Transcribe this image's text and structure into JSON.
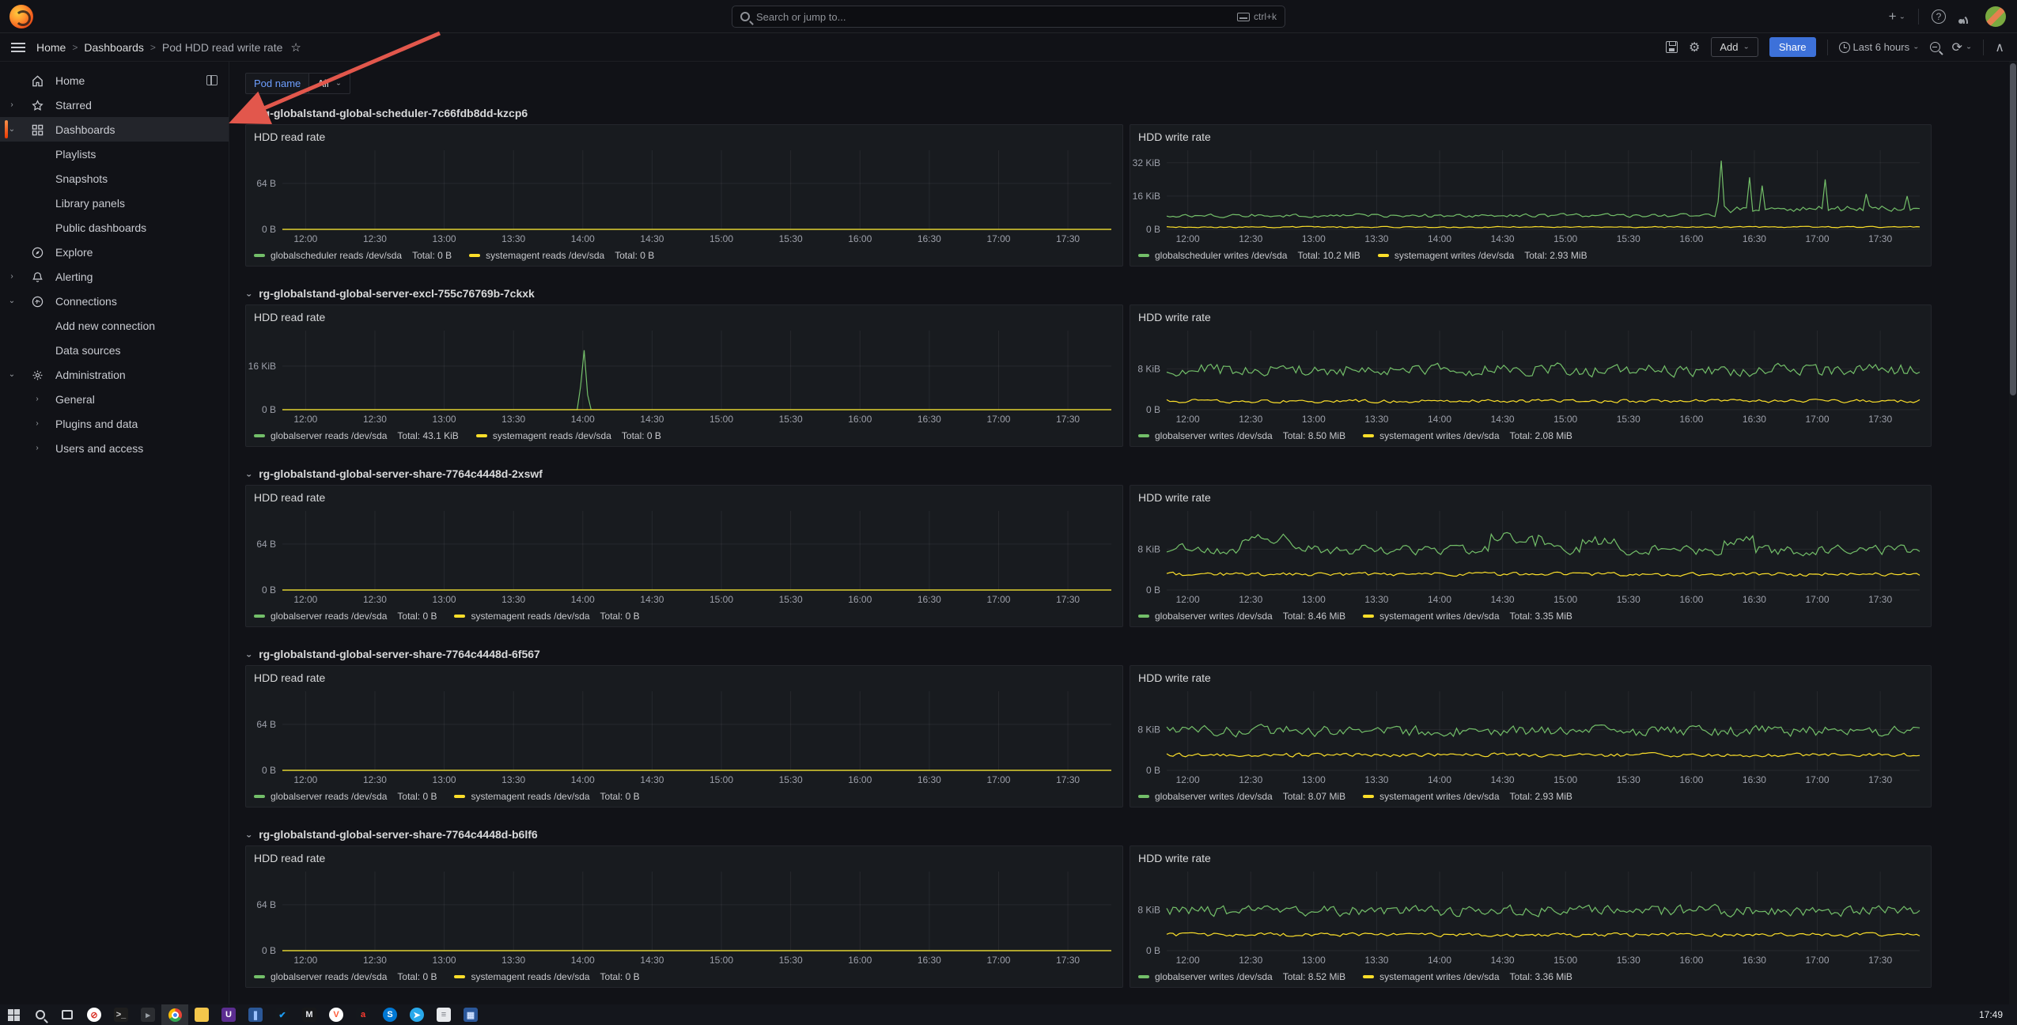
{
  "app": {
    "search_placeholder": "Search or jump to...",
    "search_shortcut": "ctrl+k"
  },
  "breadcrumbs": {
    "items": [
      "Home",
      "Dashboards",
      "Pod HDD read write rate"
    ],
    "separator": ">"
  },
  "toolbar": {
    "add_label": "Add",
    "share_label": "Share",
    "time_range": "Last 6 hours"
  },
  "sidebar": {
    "items": [
      {
        "label": "Home",
        "icon": "home",
        "level": 0,
        "trailing": "dock"
      },
      {
        "label": "Starred",
        "icon": "star",
        "level": 0,
        "expander": "right"
      },
      {
        "label": "Dashboards",
        "icon": "apps",
        "level": 0,
        "expander": "down",
        "active": true
      },
      {
        "label": "Playlists",
        "level": 1
      },
      {
        "label": "Snapshots",
        "level": 1
      },
      {
        "label": "Library panels",
        "level": 1
      },
      {
        "label": "Public dashboards",
        "level": 1
      },
      {
        "label": "Explore",
        "icon": "compass",
        "level": 0
      },
      {
        "label": "Alerting",
        "icon": "bell",
        "level": 0,
        "expander": "right"
      },
      {
        "label": "Connections",
        "icon": "plug",
        "level": 0,
        "expander": "down"
      },
      {
        "label": "Add new connection",
        "level": 1
      },
      {
        "label": "Data sources",
        "level": 1
      },
      {
        "label": "Administration",
        "icon": "gear",
        "level": 0,
        "expander": "down"
      },
      {
        "label": "General",
        "level": 1,
        "expander": "right"
      },
      {
        "label": "Plugins and data",
        "level": 1,
        "expander": "right"
      },
      {
        "label": "Users and access",
        "level": 1,
        "expander": "right"
      }
    ]
  },
  "variables": {
    "pod_label": "Pod name",
    "pod_value": "All"
  },
  "annotation": {
    "arrow_color": "#e2574c",
    "from": [
      556,
      42
    ],
    "to": [
      303,
      150
    ]
  },
  "colors": {
    "series_green": "#73bf69",
    "series_yellow": "#fade2a",
    "accent_blue": "#3d71d9",
    "link_blue": "#6e9fff",
    "sidebar_active_orange": "#ee3902"
  },
  "chart_data": [
    {
      "pod": "rg-globalstand-global-scheduler-7c66fdb8dd-kzcp6",
      "panels": [
        {
          "title": "HDD read rate",
          "type": "line",
          "unit": "B",
          "ylim": [
            0,
            110
          ],
          "yticks": [
            {
              "label": "64 B",
              "value": 64
            },
            {
              "label": "0 B",
              "value": 0
            }
          ],
          "xticks": [
            "12:00",
            "12:30",
            "13:00",
            "13:30",
            "14:00",
            "14:30",
            "15:00",
            "15:30",
            "16:00",
            "16:30",
            "17:00",
            "17:30"
          ],
          "series": [
            {
              "name": "globalscheduler reads /dev/sda",
              "total": "Total: 0 B",
              "color": "#73bf69",
              "points": {
                "type": "flat",
                "value": 0
              }
            },
            {
              "name": "systemagent reads /dev/sda",
              "total": "Total: 0 B",
              "color": "#fade2a",
              "points": {
                "type": "flat",
                "value": 0
              }
            }
          ]
        },
        {
          "title": "HDD write rate",
          "type": "line",
          "unit": "KiB",
          "ylim": [
            0,
            38
          ],
          "yticks": [
            {
              "label": "32 KiB",
              "value": 32
            },
            {
              "label": "16 KiB",
              "value": 16
            },
            {
              "label": "0 B",
              "value": 0
            }
          ],
          "xticks": [
            "12:00",
            "12:30",
            "13:00",
            "13:30",
            "14:00",
            "14:30",
            "15:00",
            "15:30",
            "16:00",
            "16:30",
            "17:00",
            "17:30"
          ],
          "series": [
            {
              "name": "globalscheduler writes /dev/sda",
              "total": "Total: 10.2 MiB",
              "color": "#73bf69",
              "points": {
                "type": "noise",
                "seed": 11,
                "base": 6.6,
                "amp": 1.2,
                "bumps": [
                  {
                    "from": 0.73,
                    "to": 1.0,
                    "add": 4.2
                  }
                ],
                "spikes": [
                  {
                    "t": 0.735,
                    "v": 33
                  },
                  {
                    "t": 0.775,
                    "v": 25
                  },
                  {
                    "t": 0.79,
                    "v": 21
                  },
                  {
                    "t": 0.875,
                    "v": 24
                  },
                  {
                    "t": 0.93,
                    "v": 17
                  },
                  {
                    "t": 0.985,
                    "v": 16
                  }
                ]
              }
            },
            {
              "name": "systemagent writes /dev/sda",
              "total": "Total: 2.93 MiB",
              "color": "#fade2a",
              "points": {
                "type": "noise",
                "seed": 12,
                "base": 1.1,
                "amp": 0.4
              }
            }
          ]
        }
      ]
    },
    {
      "pod": "rg-globalstand-global-server-excl-755c76769b-7ckxk",
      "panels": [
        {
          "title": "HDD read rate",
          "type": "line",
          "unit": "KiB",
          "ylim": [
            0,
            29
          ],
          "yticks": [
            {
              "label": "16 KiB",
              "value": 16
            },
            {
              "label": "0 B",
              "value": 0
            }
          ],
          "xticks": [
            "12:00",
            "12:30",
            "13:00",
            "13:30",
            "14:00",
            "14:30",
            "15:00",
            "15:30",
            "16:00",
            "16:30",
            "17:00",
            "17:30"
          ],
          "series": [
            {
              "name": "globalserver reads /dev/sda",
              "total": "Total: 43.1 KiB",
              "color": "#73bf69",
              "points": {
                "type": "flat",
                "value": 0,
                "spikes": [
                  {
                    "t": 0.362,
                    "v": 21.8
                  }
                ]
              }
            },
            {
              "name": "systemagent reads /dev/sda",
              "total": "Total: 0 B",
              "color": "#fade2a",
              "points": {
                "type": "flat",
                "value": 0
              }
            }
          ]
        },
        {
          "title": "HDD write rate",
          "type": "line",
          "unit": "KiB",
          "ylim": [
            0,
            15.5
          ],
          "yticks": [
            {
              "label": "8 KiB",
              "value": 8
            },
            {
              "label": "0 B",
              "value": 0
            }
          ],
          "xticks": [
            "12:00",
            "12:30",
            "13:00",
            "13:30",
            "14:00",
            "14:30",
            "15:00",
            "15:30",
            "16:00",
            "16:30",
            "17:00",
            "17:30"
          ],
          "series": [
            {
              "name": "globalserver writes /dev/sda",
              "total": "Total: 8.50 MiB",
              "color": "#73bf69",
              "points": {
                "type": "noise",
                "seed": 21,
                "base": 7.8,
                "amp": 1.7
              }
            },
            {
              "name": "systemagent writes /dev/sda",
              "total": "Total: 2.08 MiB",
              "color": "#fade2a",
              "points": {
                "type": "noise",
                "seed": 22,
                "base": 1.7,
                "amp": 0.45
              }
            }
          ]
        }
      ]
    },
    {
      "pod": "rg-globalstand-global-server-share-7764c4448d-2xswf",
      "panels": [
        {
          "title": "HDD read rate",
          "type": "line",
          "unit": "B",
          "ylim": [
            0,
            110
          ],
          "yticks": [
            {
              "label": "64 B",
              "value": 64
            },
            {
              "label": "0 B",
              "value": 0
            }
          ],
          "xticks": [
            "12:00",
            "12:30",
            "13:00",
            "13:30",
            "14:00",
            "14:30",
            "15:00",
            "15:30",
            "16:00",
            "16:30",
            "17:00",
            "17:30"
          ],
          "series": [
            {
              "name": "globalserver reads /dev/sda",
              "total": "Total: 0 B",
              "color": "#73bf69",
              "points": {
                "type": "flat",
                "value": 0
              }
            },
            {
              "name": "systemagent reads /dev/sda",
              "total": "Total: 0 B",
              "color": "#fade2a",
              "points": {
                "type": "flat",
                "value": 0
              }
            }
          ]
        },
        {
          "title": "HDD write rate",
          "type": "line",
          "unit": "KiB",
          "ylim": [
            0,
            15.5
          ],
          "yticks": [
            {
              "label": "8 KiB",
              "value": 8
            },
            {
              "label": "0 B",
              "value": 0
            }
          ],
          "xticks": [
            "12:00",
            "12:30",
            "13:00",
            "13:30",
            "14:00",
            "14:30",
            "15:00",
            "15:30",
            "16:00",
            "16:30",
            "17:00",
            "17:30"
          ],
          "series": [
            {
              "name": "globalserver writes /dev/sda",
              "total": "Total: 8.46 MiB",
              "color": "#73bf69",
              "points": {
                "type": "noise",
                "seed": 31,
                "base": 7.9,
                "amp": 1.4,
                "bumps": [
                  {
                    "from": 0.1,
                    "to": 0.17,
                    "add": 2.6
                  },
                  {
                    "from": 0.43,
                    "to": 0.5,
                    "add": 2.8
                  },
                  {
                    "from": 0.55,
                    "to": 0.6,
                    "add": 1.8
                  },
                  {
                    "from": 0.74,
                    "to": 0.78,
                    "add": 2.0
                  }
                ]
              }
            },
            {
              "name": "systemagent writes /dev/sda",
              "total": "Total: 3.35 MiB",
              "color": "#fade2a",
              "points": {
                "type": "noise",
                "seed": 32,
                "base": 3.1,
                "amp": 0.5
              }
            }
          ]
        }
      ]
    },
    {
      "pod": "rg-globalstand-global-server-share-7764c4448d-6f567",
      "panels": [
        {
          "title": "HDD read rate",
          "type": "line",
          "unit": "B",
          "ylim": [
            0,
            110
          ],
          "yticks": [
            {
              "label": "64 B",
              "value": 64
            },
            {
              "label": "0 B",
              "value": 0
            }
          ],
          "xticks": [
            "12:00",
            "12:30",
            "13:00",
            "13:30",
            "14:00",
            "14:30",
            "15:00",
            "15:30",
            "16:00",
            "16:30",
            "17:00",
            "17:30"
          ],
          "series": [
            {
              "name": "globalserver reads /dev/sda",
              "total": "Total: 0 B",
              "color": "#73bf69",
              "points": {
                "type": "flat",
                "value": 0
              }
            },
            {
              "name": "systemagent reads /dev/sda",
              "total": "Total: 0 B",
              "color": "#fade2a",
              "points": {
                "type": "flat",
                "value": 0
              }
            }
          ]
        },
        {
          "title": "HDD write rate",
          "type": "line",
          "unit": "KiB",
          "ylim": [
            0,
            15.5
          ],
          "yticks": [
            {
              "label": "8 KiB",
              "value": 8
            },
            {
              "label": "0 B",
              "value": 0
            }
          ],
          "xticks": [
            "12:00",
            "12:30",
            "13:00",
            "13:30",
            "14:00",
            "14:30",
            "15:00",
            "15:30",
            "16:00",
            "16:30",
            "17:00",
            "17:30"
          ],
          "series": [
            {
              "name": "globalserver writes /dev/sda",
              "total": "Total: 8.07 MiB",
              "color": "#73bf69",
              "points": {
                "type": "noise",
                "seed": 41,
                "base": 7.7,
                "amp": 1.5
              }
            },
            {
              "name": "systemagent writes /dev/sda",
              "total": "Total: 2.93 MiB",
              "color": "#fade2a",
              "points": {
                "type": "noise",
                "seed": 42,
                "base": 3.0,
                "amp": 0.5
              }
            }
          ]
        }
      ]
    },
    {
      "pod": "rg-globalstand-global-server-share-7764c4448d-b6lf6",
      "panels": [
        {
          "title": "HDD read rate",
          "type": "line",
          "unit": "B",
          "ylim": [
            0,
            110
          ],
          "yticks": [
            {
              "label": "64 B",
              "value": 64
            },
            {
              "label": "0 B",
              "value": 0
            }
          ],
          "xticks": [
            "12:00",
            "12:30",
            "13:00",
            "13:30",
            "14:00",
            "14:30",
            "15:00",
            "15:30",
            "16:00",
            "16:30",
            "17:00",
            "17:30"
          ],
          "series": [
            {
              "name": "globalserver reads /dev/sda",
              "total": "Total: 0 B",
              "color": "#73bf69",
              "points": {
                "type": "flat",
                "value": 0
              }
            },
            {
              "name": "systemagent reads /dev/sda",
              "total": "Total: 0 B",
              "color": "#fade2a",
              "points": {
                "type": "flat",
                "value": 0
              }
            }
          ]
        },
        {
          "title": "HDD write rate",
          "type": "line",
          "unit": "KiB",
          "ylim": [
            0,
            15.5
          ],
          "yticks": [
            {
              "label": "8 KiB",
              "value": 8
            },
            {
              "label": "0 B",
              "value": 0
            }
          ],
          "xticks": [
            "12:00",
            "12:30",
            "13:00",
            "13:30",
            "14:00",
            "14:30",
            "15:00",
            "15:30",
            "16:00",
            "16:30",
            "17:00",
            "17:30"
          ],
          "series": [
            {
              "name": "globalserver writes /dev/sda",
              "total": "Total: 8.52 MiB",
              "color": "#73bf69",
              "points": {
                "type": "noise",
                "seed": 51,
                "base": 7.8,
                "amp": 1.5
              }
            },
            {
              "name": "systemagent writes /dev/sda",
              "total": "Total: 3.36 MiB",
              "color": "#fade2a",
              "points": {
                "type": "noise",
                "seed": 52,
                "base": 3.1,
                "amp": 0.5
              }
            }
          ]
        }
      ]
    }
  ],
  "taskbar": {
    "clock": "17:49",
    "items": [
      {
        "name": "start-button",
        "special": "start"
      },
      {
        "name": "search-button",
        "special": "search"
      },
      {
        "name": "task-view-button",
        "special": "taskview"
      },
      {
        "name": "app-red-badge",
        "glyph": "⊘",
        "bg": "#ffffff",
        "fg": "#d93025",
        "round": true
      },
      {
        "name": "command-prompt",
        "glyph": ">_",
        "bg": "#1e1e1e",
        "fg": "#d4d4d4"
      },
      {
        "name": "terminal",
        "glyph": "▸",
        "bg": "#2b2d31",
        "fg": "#9aa0a6"
      },
      {
        "name": "chrome",
        "special": "chrome",
        "active": true
      },
      {
        "name": "file-explorer",
        "glyph": "",
        "bg": "#f3c64b",
        "fg": "#b68a1f"
      },
      {
        "name": "app-u-purple",
        "glyph": "U",
        "bg": "#5b2d90",
        "fg": "#ffffff"
      },
      {
        "name": "app-blue-window",
        "glyph": "❚",
        "bg": "#2b5797",
        "fg": "#9cc3ff"
      },
      {
        "name": "app-check-blue",
        "glyph": "✔",
        "bg": "#14171c",
        "fg": "#1d9bf0"
      },
      {
        "name": "app-dark",
        "glyph": "M",
        "bg": "#17181a",
        "fg": "#e8eaed"
      },
      {
        "name": "app-v-orange",
        "glyph": "V",
        "bg": "#ffffff",
        "fg": "#ff5c39",
        "round": true
      },
      {
        "name": "app-a-red",
        "glyph": "a",
        "bg": "#14171c",
        "fg": "#ff3b30"
      },
      {
        "name": "skype",
        "glyph": "S",
        "bg": "#0078d4",
        "fg": "#ffffff",
        "round": true
      },
      {
        "name": "telegram",
        "glyph": "➤",
        "bg": "#29a9eb",
        "fg": "#ffffff",
        "round": true
      },
      {
        "name": "notepad",
        "glyph": "≡",
        "bg": "#e8eaed",
        "fg": "#7a7d85"
      },
      {
        "name": "app-blue-doc",
        "glyph": "▦",
        "bg": "#2b579a",
        "fg": "#cfe0ff"
      }
    ]
  }
}
